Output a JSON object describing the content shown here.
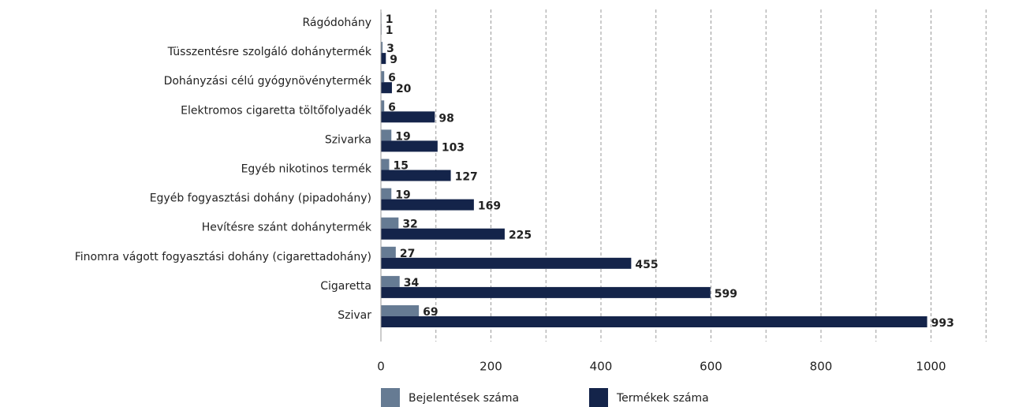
{
  "chart_data": {
    "type": "barh",
    "categories": [
      "Rágódohány",
      "Tüsszentésre szolgáló dohánytermék",
      "Dohányzási célú gyógynövénytermék",
      "Elektromos cigaretta töltőfolyadék",
      "Szivarka",
      "Egyéb nikotinos termék",
      "Egyéb fogyasztási dohány (pipadohány)",
      "Hevítésre szánt dohánytermék",
      "Finomra vágott fogyasztási dohány (cigarettadohány)",
      "Cigaretta",
      "Szivar"
    ],
    "series": [
      {
        "name": "Bejelentések száma",
        "color": "#667b93",
        "values": [
          1,
          3,
          6,
          6,
          19,
          15,
          19,
          32,
          27,
          34,
          69
        ]
      },
      {
        "name": "Termékek száma",
        "color": "#14244a",
        "values": [
          1,
          9,
          20,
          98,
          103,
          127,
          169,
          225,
          455,
          599,
          993
        ]
      }
    ],
    "xlim": [
      0,
      1110
    ],
    "xticks": [
      0,
      200,
      400,
      600,
      800,
      1000
    ],
    "xminor_ticks": [
      100,
      300,
      500,
      700,
      900,
      1100
    ],
    "grid": true,
    "legend": "bottom"
  }
}
